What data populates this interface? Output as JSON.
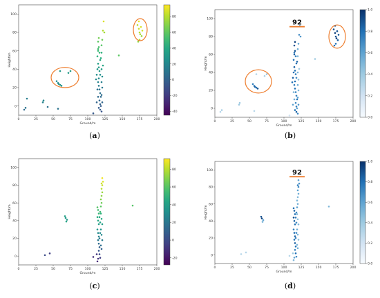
{
  "chart_data": [
    {
      "type": "scatter",
      "panel": "(a)",
      "panel_letter": "a",
      "xlabel": "Ground/m",
      "ylabel": "Height/m",
      "xlim": [
        0,
        200
      ],
      "ylim": [
        -10,
        110
      ],
      "xticks": [
        0,
        25,
        50,
        75,
        100,
        125,
        150,
        175,
        200
      ],
      "yticks": [
        0,
        20,
        40,
        60,
        80,
        100
      ],
      "colorbar": {
        "colormap": "viridis",
        "min": -45,
        "max": 95,
        "ticks": [
          -40,
          -20,
          0,
          20,
          40,
          60,
          80
        ]
      },
      "annotation": "",
      "circles": [
        {
          "cx": 67,
          "cy": 31,
          "rx": 20,
          "ry": 11
        },
        {
          "cx": 176,
          "cy": 83,
          "rx": 10,
          "ry": 12
        }
      ],
      "points": [
        [
          8,
          -4,
          5
        ],
        [
          10,
          -2,
          10
        ],
        [
          12,
          8,
          15
        ],
        [
          35,
          4,
          18
        ],
        [
          36,
          6,
          20
        ],
        [
          42,
          -1,
          8
        ],
        [
          55,
          27,
          22
        ],
        [
          57,
          25,
          25
        ],
        [
          58,
          24,
          24
        ],
        [
          60,
          23,
          26
        ],
        [
          62,
          22,
          28
        ],
        [
          60,
          38,
          30
        ],
        [
          72,
          36,
          32
        ],
        [
          75,
          38,
          34
        ],
        [
          57,
          -3,
          10
        ],
        [
          108,
          -8,
          -5
        ],
        [
          112,
          29,
          20
        ],
        [
          113,
          34,
          25
        ],
        [
          114,
          40,
          30
        ],
        [
          115,
          46,
          35
        ],
        [
          114,
          54,
          45
        ],
        [
          115,
          60,
          50
        ],
        [
          116,
          64,
          55
        ],
        [
          115,
          70,
          60
        ],
        [
          116,
          74,
          66
        ],
        [
          115,
          62,
          52
        ],
        [
          117,
          58,
          48
        ],
        [
          118,
          50,
          42
        ],
        [
          119,
          52,
          44
        ],
        [
          116,
          42,
          32
        ],
        [
          117,
          38,
          30
        ],
        [
          118,
          34,
          26
        ],
        [
          116,
          30,
          22
        ],
        [
          115,
          26,
          18
        ],
        [
          116,
          22,
          14
        ],
        [
          117,
          18,
          10
        ],
        [
          118,
          14,
          8
        ],
        [
          119,
          10,
          5
        ],
        [
          117,
          6,
          2
        ],
        [
          118,
          2,
          0
        ],
        [
          116,
          -2,
          -3
        ],
        [
          118,
          -4,
          -5
        ],
        [
          120,
          -6,
          -8
        ],
        [
          119,
          0,
          -4
        ],
        [
          121,
          4,
          2
        ],
        [
          120,
          12,
          6
        ],
        [
          121,
          20,
          12
        ],
        [
          120,
          26,
          16
        ],
        [
          121,
          32,
          24
        ],
        [
          120,
          40,
          34
        ],
        [
          122,
          44,
          38
        ],
        [
          120,
          66,
          58
        ],
        [
          121,
          72,
          64
        ],
        [
          122,
          82,
          80
        ],
        [
          123,
          92,
          88
        ],
        [
          124,
          80,
          76
        ],
        [
          120,
          58,
          46
        ],
        [
          114,
          18,
          8
        ],
        [
          115,
          10,
          4
        ],
        [
          113,
          4,
          2
        ],
        [
          145,
          55,
          60
        ],
        [
          172,
          88,
          82
        ],
        [
          174,
          84,
          85
        ],
        [
          175,
          80,
          80
        ],
        [
          176,
          78,
          78
        ],
        [
          177,
          86,
          88
        ],
        [
          178,
          76,
          75
        ],
        [
          175,
          72,
          80
        ],
        [
          179,
          82,
          86
        ],
        [
          174,
          92,
          90
        ],
        [
          173,
          70,
          72
        ]
      ]
    },
    {
      "type": "scatter",
      "panel": "(b)",
      "panel_letter": "b",
      "xlabel": "Ground/m",
      "ylabel": "Height/m",
      "xlim": [
        0,
        200
      ],
      "ylim": [
        -10,
        110
      ],
      "xticks": [
        0,
        25,
        50,
        75,
        100,
        125,
        150,
        175,
        200
      ],
      "yticks": [
        0,
        20,
        40,
        60,
        80,
        100
      ],
      "colorbar": {
        "colormap": "blues",
        "min": 0,
        "max": 1,
        "ticks": [
          0.0,
          0.2,
          0.4,
          0.6,
          0.8,
          1.0
        ]
      },
      "annotation": "92",
      "annotation_line": {
        "x0": 108,
        "x1": 130,
        "y": 91
      },
      "circles": [
        {
          "cx": 63,
          "cy": 30,
          "rx": 19,
          "ry": 13
        },
        {
          "cx": 177,
          "cy": 80,
          "rx": 12,
          "ry": 13
        }
      ],
      "points": [
        [
          8,
          -4,
          0.3
        ],
        [
          10,
          -2,
          0.35
        ],
        [
          35,
          4,
          0.4
        ],
        [
          36,
          6,
          0.4
        ],
        [
          57,
          -3,
          0.3
        ],
        [
          55,
          27,
          0.75
        ],
        [
          57,
          25,
          0.8
        ],
        [
          58,
          24,
          0.85
        ],
        [
          60,
          23,
          0.8
        ],
        [
          62,
          22,
          0.9
        ],
        [
          60,
          38,
          0.3
        ],
        [
          72,
          36,
          0.35
        ],
        [
          75,
          38,
          0.4
        ],
        [
          108,
          -8,
          0.2
        ],
        [
          112,
          29,
          0.8
        ],
        [
          113,
          34,
          0.85
        ],
        [
          114,
          40,
          0.8
        ],
        [
          115,
          46,
          0.85
        ],
        [
          114,
          54,
          0.8
        ],
        [
          115,
          60,
          0.85
        ],
        [
          116,
          64,
          0.9
        ],
        [
          115,
          70,
          0.9
        ],
        [
          116,
          74,
          0.95
        ],
        [
          115,
          62,
          0.8
        ],
        [
          117,
          58,
          0.75
        ],
        [
          118,
          50,
          0.8
        ],
        [
          119,
          52,
          0.85
        ],
        [
          116,
          42,
          0.8
        ],
        [
          117,
          38,
          0.75
        ],
        [
          118,
          34,
          0.7
        ],
        [
          116,
          30,
          0.8
        ],
        [
          115,
          26,
          0.75
        ],
        [
          116,
          22,
          0.8
        ],
        [
          117,
          18,
          0.7
        ],
        [
          118,
          14,
          0.75
        ],
        [
          119,
          10,
          0.8
        ],
        [
          117,
          6,
          0.7
        ],
        [
          118,
          2,
          0.75
        ],
        [
          116,
          -2,
          0.8
        ],
        [
          118,
          -4,
          0.85
        ],
        [
          120,
          -6,
          0.7
        ],
        [
          119,
          0,
          0.6
        ],
        [
          121,
          4,
          0.65
        ],
        [
          120,
          12,
          0.6
        ],
        [
          121,
          20,
          0.5
        ],
        [
          120,
          26,
          0.55
        ],
        [
          121,
          32,
          0.45
        ],
        [
          120,
          40,
          0.5
        ],
        [
          122,
          44,
          0.4
        ],
        [
          120,
          66,
          0.55
        ],
        [
          121,
          72,
          0.6
        ],
        [
          122,
          82,
          0.7
        ],
        [
          123,
          92,
          0.6
        ],
        [
          124,
          80,
          0.65
        ],
        [
          120,
          58,
          0.5
        ],
        [
          114,
          18,
          0.5
        ],
        [
          115,
          10,
          0.55
        ],
        [
          113,
          4,
          0.6
        ],
        [
          145,
          55,
          0.4
        ],
        [
          172,
          88,
          0.9
        ],
        [
          174,
          84,
          0.95
        ],
        [
          175,
          80,
          0.9
        ],
        [
          176,
          78,
          0.95
        ],
        [
          177,
          86,
          0.9
        ],
        [
          178,
          76,
          0.85
        ],
        [
          175,
          72,
          0.8
        ],
        [
          179,
          82,
          0.9
        ],
        [
          174,
          92,
          0.85
        ],
        [
          173,
          70,
          0.8
        ]
      ]
    },
    {
      "type": "scatter",
      "panel": "(c)",
      "panel_letter": "c",
      "xlabel": "Ground/m",
      "ylabel": "Height/m",
      "xlim": [
        0,
        200
      ],
      "ylim": [
        -10,
        110
      ],
      "xticks": [
        0,
        25,
        50,
        75,
        100,
        125,
        150,
        175,
        200
      ],
      "yticks": [
        0,
        20,
        40,
        60,
        80,
        100
      ],
      "colorbar": {
        "colormap": "viridis",
        "min": -28,
        "max": 92,
        "ticks": [
          -20,
          0,
          20,
          40,
          60,
          80
        ]
      },
      "annotation": "",
      "circles": [],
      "points": [
        [
          38,
          1,
          0
        ],
        [
          45,
          3,
          -5
        ],
        [
          67,
          45,
          40
        ],
        [
          68,
          43,
          38
        ],
        [
          70,
          41,
          36
        ],
        [
          69,
          39,
          42
        ],
        [
          108,
          -1,
          -10
        ],
        [
          113,
          2,
          -8
        ],
        [
          114,
          -6,
          -12
        ],
        [
          115,
          -3,
          -10
        ],
        [
          114,
          55,
          60
        ],
        [
          115,
          52,
          55
        ],
        [
          116,
          48,
          52
        ],
        [
          114,
          44,
          48
        ],
        [
          115,
          40,
          44
        ],
        [
          116,
          36,
          40
        ],
        [
          114,
          30,
          35
        ],
        [
          115,
          26,
          30
        ],
        [
          116,
          22,
          25
        ],
        [
          115,
          18,
          20
        ],
        [
          116,
          14,
          15
        ],
        [
          117,
          10,
          10
        ],
        [
          116,
          6,
          5
        ],
        [
          117,
          2,
          0
        ],
        [
          118,
          -2,
          -5
        ],
        [
          119,
          56,
          62
        ],
        [
          120,
          60,
          66
        ],
        [
          119,
          64,
          70
        ],
        [
          120,
          68,
          72
        ],
        [
          121,
          72,
          74
        ],
        [
          120,
          76,
          80
        ],
        [
          121,
          80,
          82
        ],
        [
          122,
          84,
          86
        ],
        [
          121,
          88,
          90
        ],
        [
          120,
          82,
          84
        ],
        [
          119,
          48,
          50
        ],
        [
          120,
          42,
          46
        ],
        [
          121,
          36,
          40
        ],
        [
          119,
          30,
          34
        ],
        [
          120,
          24,
          28
        ],
        [
          121,
          18,
          22
        ],
        [
          119,
          12,
          16
        ],
        [
          120,
          8,
          10
        ],
        [
          118,
          50,
          54
        ],
        [
          117,
          44,
          46
        ],
        [
          118,
          38,
          42
        ],
        [
          118,
          26,
          30
        ],
        [
          117,
          20,
          24
        ],
        [
          165,
          57,
          60
        ]
      ]
    },
    {
      "type": "scatter",
      "panel": "(d)",
      "panel_letter": "d",
      "xlabel": "Ground/m",
      "ylabel": "Height/m",
      "xlim": [
        0,
        200
      ],
      "ylim": [
        -10,
        110
      ],
      "xticks": [
        0,
        25,
        50,
        75,
        100,
        125,
        150,
        175,
        200
      ],
      "yticks": [
        0,
        20,
        40,
        60,
        80,
        100
      ],
      "colorbar": {
        "colormap": "blues",
        "min": 0,
        "max": 1,
        "ticks": [
          0.0,
          0.2,
          0.4,
          0.6,
          0.8,
          1.0
        ]
      },
      "annotation": "92",
      "annotation_line": {
        "x0": 108,
        "x1": 130,
        "y": 92
      },
      "circles": [],
      "points": [
        [
          38,
          1,
          0.3
        ],
        [
          45,
          3,
          0.3
        ],
        [
          67,
          45,
          0.9
        ],
        [
          68,
          43,
          0.95
        ],
        [
          70,
          41,
          0.6
        ],
        [
          69,
          39,
          0.5
        ],
        [
          108,
          -1,
          0.3
        ],
        [
          113,
          2,
          0.4
        ],
        [
          114,
          -6,
          0.5
        ],
        [
          115,
          -3,
          0.6
        ],
        [
          114,
          55,
          0.8
        ],
        [
          115,
          52,
          0.85
        ],
        [
          116,
          48,
          0.8
        ],
        [
          114,
          44,
          0.9
        ],
        [
          115,
          40,
          0.85
        ],
        [
          116,
          36,
          0.8
        ],
        [
          114,
          30,
          0.75
        ],
        [
          115,
          26,
          0.8
        ],
        [
          116,
          22,
          0.85
        ],
        [
          115,
          18,
          0.8
        ],
        [
          116,
          14,
          0.85
        ],
        [
          117,
          10,
          0.8
        ],
        [
          116,
          6,
          0.75
        ],
        [
          117,
          2,
          0.8
        ],
        [
          118,
          -2,
          0.7
        ],
        [
          119,
          56,
          0.6
        ],
        [
          120,
          60,
          0.55
        ],
        [
          119,
          64,
          0.5
        ],
        [
          120,
          68,
          0.5
        ],
        [
          121,
          72,
          0.55
        ],
        [
          120,
          76,
          0.6
        ],
        [
          121,
          80,
          0.7
        ],
        [
          122,
          84,
          0.65
        ],
        [
          121,
          88,
          0.6
        ],
        [
          120,
          82,
          0.75
        ],
        [
          119,
          48,
          0.5
        ],
        [
          120,
          42,
          0.45
        ],
        [
          121,
          36,
          0.5
        ],
        [
          119,
          30,
          0.55
        ],
        [
          120,
          24,
          0.5
        ],
        [
          121,
          18,
          0.45
        ],
        [
          119,
          12,
          0.5
        ],
        [
          120,
          8,
          0.55
        ],
        [
          118,
          50,
          0.7
        ],
        [
          117,
          44,
          0.75
        ],
        [
          118,
          38,
          0.7
        ],
        [
          118,
          26,
          0.7
        ],
        [
          117,
          20,
          0.75
        ],
        [
          165,
          57,
          0.5
        ]
      ]
    }
  ]
}
